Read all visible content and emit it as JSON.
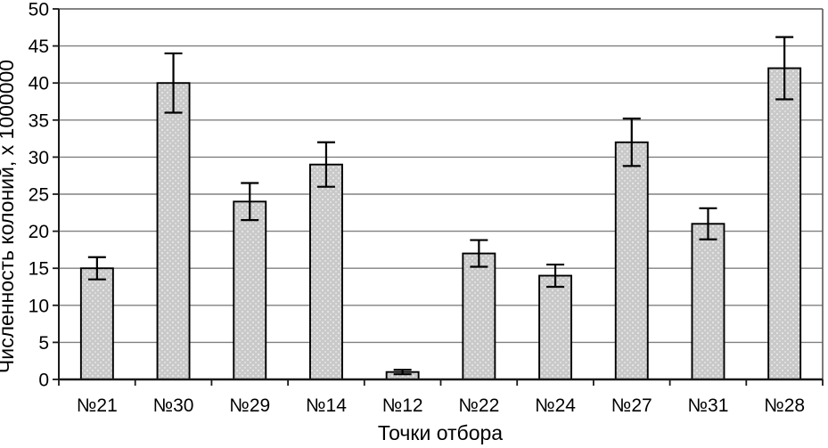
{
  "chart_data": {
    "type": "bar",
    "categories": [
      "№21",
      "№30",
      "№29",
      "№14",
      "№12",
      "№22",
      "№24",
      "№27",
      "№31",
      "№28"
    ],
    "values": [
      15,
      40,
      24,
      29,
      1,
      17,
      14,
      32,
      21,
      42
    ],
    "error_bars": [
      1.5,
      4,
      2.5,
      3,
      0.3,
      1.8,
      1.5,
      3.2,
      2.1,
      4.2
    ],
    "title": "",
    "xlabel": "Точки отбора",
    "ylabel": "Численность колоний, х 1000000",
    "ylim": [
      0,
      50
    ],
    "ytick_step": 5,
    "ytick_labels": [
      "0",
      "5",
      "10",
      "15",
      "20",
      "25",
      "30",
      "35",
      "40",
      "45",
      "50"
    ],
    "grid": "horizontal",
    "legend": "none",
    "colors": {
      "bar_fill": "#c9c9c9",
      "bar_speckle": "#e4e4e4",
      "bar_border": "#000000",
      "grid_color": "#808080",
      "axis_color": "#1a1a1a",
      "plot_border": "#5a5a5a",
      "error_bar_color": "#000000",
      "background": "#ffffff"
    }
  }
}
